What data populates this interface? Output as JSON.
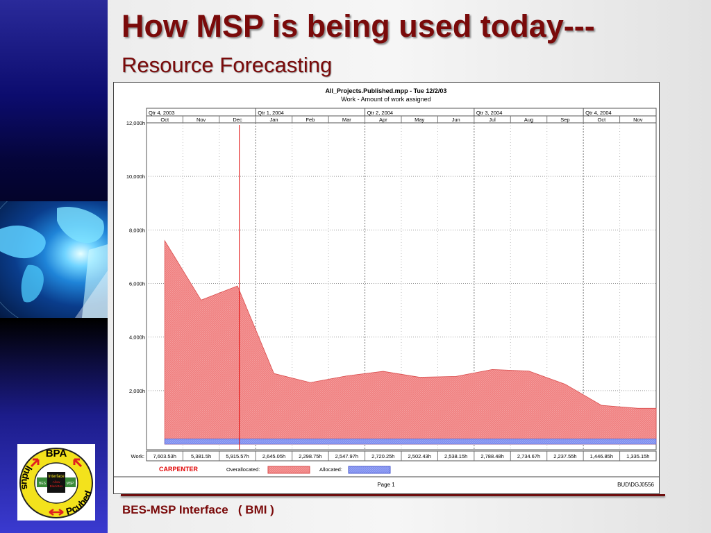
{
  "slide": {
    "title": "How MSP is being used today---",
    "subtitle": "Resource Forecasting",
    "footer": "BES-MSP Interface   ( BMI )"
  },
  "logo": {
    "top_word": "BPA",
    "left_word": "Indus",
    "right_word": "Pcubed",
    "center_title": "Interface",
    "center_lines": [
      "Allow",
      "BlackBox"
    ],
    "chip_left": "BES",
    "chip_right": "MSP"
  },
  "chart_data": {
    "type": "area",
    "title": "All_Projects.Published.mpp  - Tue 12/2/03",
    "subtitle": "Work - Amount of work assigned",
    "quarters": [
      "Qtr 4, 2003",
      "Qtr 1, 2004",
      "Qtr 2, 2004",
      "Qtr 3, 2004",
      "Qtr 4, 2004"
    ],
    "quarter_month_counts": [
      3,
      3,
      3,
      3,
      2
    ],
    "categories": [
      "Oct",
      "Nov",
      "Dec",
      "Jan",
      "Feb",
      "Mar",
      "Apr",
      "May",
      "Jun",
      "Jul",
      "Aug",
      "Sep",
      "Oct",
      "Nov"
    ],
    "y_ticks": [
      "12,000h",
      "10,000h",
      "8,000h",
      "6,000h",
      "4,000h",
      "2,000h"
    ],
    "y_tick_values": [
      12000,
      10000,
      8000,
      6000,
      4000,
      2000
    ],
    "ylim": [
      0,
      12500
    ],
    "series": [
      {
        "name": "Overallocated:",
        "color": "#f08080",
        "values": [
          7600,
          5380,
          5910,
          2640,
          2300,
          2550,
          2720,
          2500,
          2530,
          2790,
          2730,
          2240,
          1450,
          1340
        ]
      },
      {
        "name": "Allocated:",
        "color": "#7f8ff0",
        "values": [
          200,
          200,
          200,
          200,
          200,
          200,
          200,
          200,
          200,
          200,
          200,
          200,
          200,
          200
        ]
      }
    ],
    "work_label": "Work:",
    "work_values": [
      "7,603.53h",
      "5,381.5h",
      "5,915.57h",
      "2,645.05h",
      "2,298.75h",
      "2,547.97h",
      "2,720.25h",
      "2,502.43h",
      "2,538.15h",
      "2,788.48h",
      "2,734.67h",
      "2,237.55h",
      "1,446.85h",
      "1,335.15h"
    ],
    "resource": "CARPENTER",
    "status_date_marker_month_fraction": 2.55,
    "page_label": "Page 1",
    "page_code": "BUD\\DGJ0556",
    "grid": true
  }
}
